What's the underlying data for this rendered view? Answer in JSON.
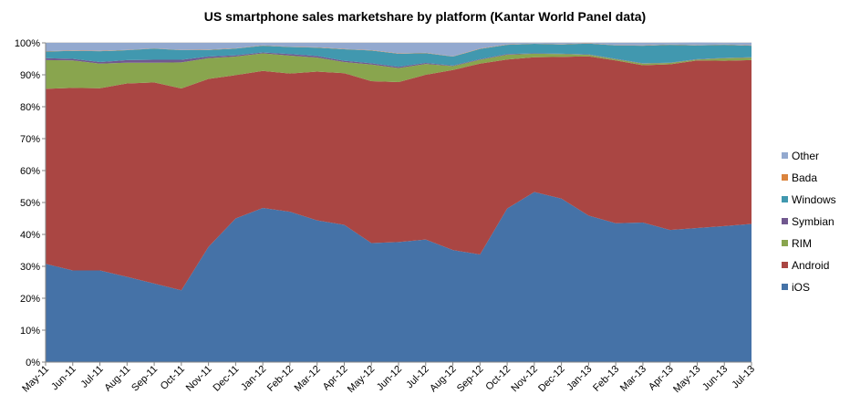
{
  "chart_data": {
    "type": "area",
    "stacked": true,
    "title": "US smartphone sales marketshare by platform (Kantar World Panel data)",
    "categories": [
      "May-11",
      "Jun-11",
      "Jul-11",
      "Aug-11",
      "Sep-11",
      "Oct-11",
      "Nov-11",
      "Dec-11",
      "Jan-12",
      "Feb-12",
      "Mar-12",
      "Apr-12",
      "May-12",
      "Jun-12",
      "Jul-12",
      "Aug-12",
      "Sep-12",
      "Oct-12",
      "Nov-12",
      "Dec-12",
      "Jan-13",
      "Feb-13",
      "Mar-13",
      "Apr-13",
      "May-13",
      "Jun-13",
      "Jul-13"
    ],
    "ylim": [
      0,
      100
    ],
    "yticks": [
      "0%",
      "10%",
      "20%",
      "30%",
      "40%",
      "50%",
      "60%",
      "70%",
      "80%",
      "90%",
      "100%"
    ],
    "grid": true,
    "legend_position": "right",
    "series": [
      {
        "name": "iOS",
        "color": "#4572A7",
        "values": [
          30.8,
          28.7,
          28.7,
          26.7,
          24.6,
          22.5,
          36.1,
          45.0,
          48.3,
          47.1,
          44.4,
          43.0,
          37.3,
          37.6,
          38.4,
          35.1,
          33.7,
          48.1,
          53.3,
          51.2,
          45.9,
          43.5,
          43.7,
          41.4,
          42.0,
          42.6,
          43.3
        ]
      },
      {
        "name": "Android",
        "color": "#AA4643",
        "values": [
          54.8,
          57.2,
          57.1,
          60.6,
          63.0,
          63.2,
          52.6,
          44.9,
          42.9,
          43.3,
          46.6,
          47.5,
          50.7,
          50.1,
          51.6,
          56.4,
          59.8,
          46.7,
          42.2,
          44.4,
          49.9,
          51.0,
          49.3,
          51.9,
          52.5,
          51.8,
          51.3
        ]
      },
      {
        "name": "RIM",
        "color": "#89A54E",
        "values": [
          9.0,
          8.6,
          7.7,
          6.5,
          6.2,
          8.2,
          6.5,
          5.8,
          5.5,
          5.6,
          4.4,
          3.5,
          5.2,
          4.4,
          3.4,
          1.2,
          1.2,
          1.5,
          1.1,
          0.9,
          0.5,
          0.4,
          0.5,
          0.4,
          0.3,
          0.8,
          0.8
        ]
      },
      {
        "name": "Symbian",
        "color": "#71588F",
        "values": [
          0.6,
          0.5,
          0.5,
          0.8,
          0.9,
          0.8,
          0.5,
          0.4,
          0.3,
          0.5,
          0.5,
          0.4,
          0.4,
          0.4,
          0.3,
          0.2,
          0.2,
          0.2,
          0.1,
          0.1,
          0.1,
          0.1,
          0.1,
          0.1,
          0.1,
          0.1,
          0.1
        ]
      },
      {
        "name": "Windows",
        "color": "#4198AF",
        "values": [
          2.1,
          2.5,
          3.4,
          3.1,
          3.5,
          3.0,
          2.1,
          2.1,
          2.1,
          2.2,
          2.6,
          3.6,
          4.0,
          4.1,
          3.1,
          2.8,
          3.2,
          2.9,
          3.0,
          2.9,
          3.4,
          4.2,
          5.5,
          5.6,
          4.3,
          4.1,
          3.6
        ]
      },
      {
        "name": "Bada",
        "color": "#DB843D",
        "values": [
          0.1,
          0.1,
          0.1,
          0.1,
          0.1,
          0.1,
          0.1,
          0.1,
          0.1,
          0.1,
          0.1,
          0.1,
          0.1,
          0.1,
          0.1,
          0.1,
          0.1,
          0.1,
          0.1,
          0.1,
          0.1,
          0.1,
          0.1,
          0.1,
          0.1,
          0.1,
          0.1
        ]
      },
      {
        "name": "Other",
        "color": "#93A9CF",
        "values": [
          2.6,
          2.4,
          2.5,
          2.2,
          1.7,
          2.2,
          2.1,
          1.7,
          0.8,
          1.2,
          1.4,
          1.9,
          2.3,
          3.3,
          3.1,
          4.2,
          1.8,
          0.5,
          0.2,
          0.4,
          0.1,
          0.7,
          0.8,
          0.5,
          0.8,
          0.5,
          0.8
        ]
      }
    ]
  }
}
